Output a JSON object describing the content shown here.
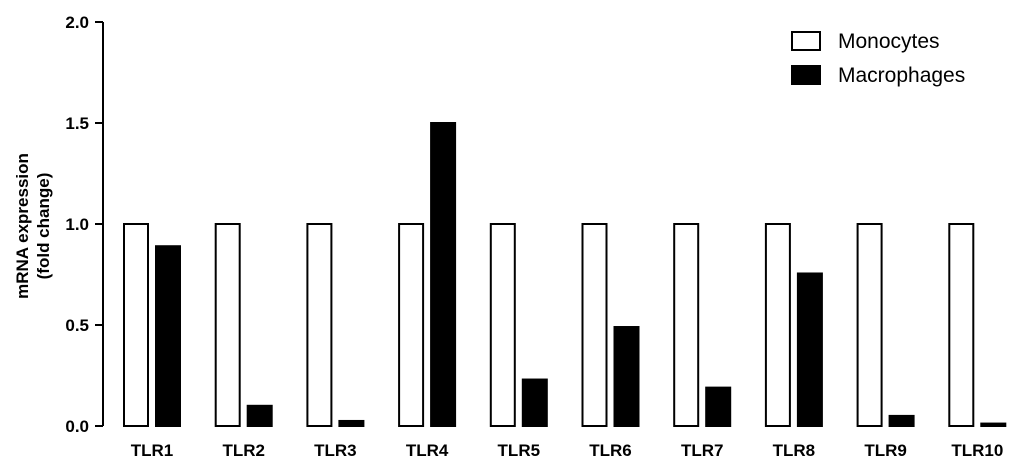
{
  "chart_data": {
    "type": "bar",
    "categories": [
      "TLR1",
      "TLR2",
      "TLR3",
      "TLR4",
      "TLR5",
      "TLR6",
      "TLR7",
      "TLR8",
      "TLR9",
      "TLR10"
    ],
    "series": [
      {
        "name": "Monocytes",
        "values": [
          1,
          1,
          1,
          1,
          1,
          1,
          1,
          1,
          1,
          1
        ],
        "fill": "#ffffff",
        "stroke": "#000000"
      },
      {
        "name": "Macrophages",
        "values": [
          0.89,
          0.1,
          0.025,
          1.5,
          0.23,
          0.49,
          0.19,
          0.755,
          0.05,
          0.012
        ],
        "fill": "#000000",
        "stroke": "#000000"
      }
    ],
    "ylabel_lines": [
      "mRNA expression",
      "(fold change)"
    ],
    "ylim": [
      0,
      2
    ],
    "yticks": [
      "0.0",
      "0.5",
      "1.0",
      "1.5",
      "2.0"
    ],
    "legend_position": "top-right",
    "grid": false
  }
}
